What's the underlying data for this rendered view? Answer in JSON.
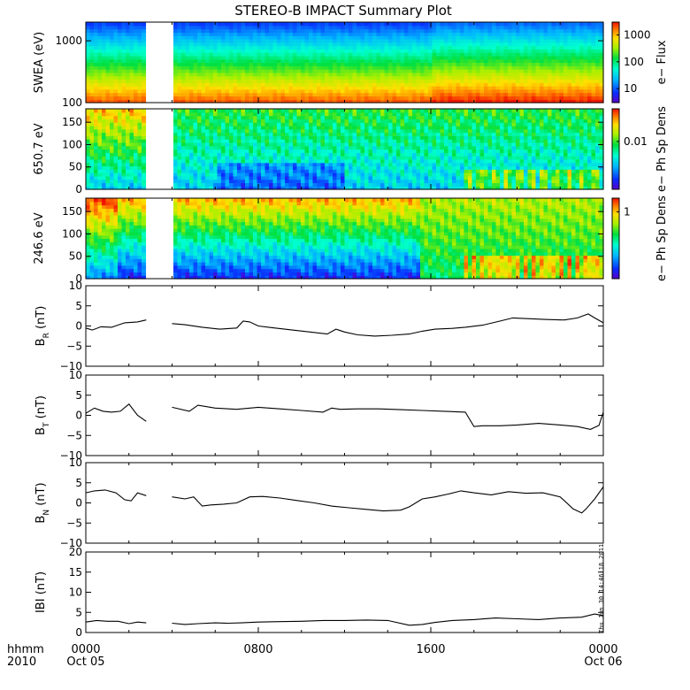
{
  "title": "STEREO-B IMPACT Summary Plot",
  "timestamp": "Thu Jun 30 14:46:18 2011",
  "time_axis": {
    "hhmm": "hhmm",
    "year": "2010",
    "ticks": [
      {
        "hour": 0,
        "time": "0000",
        "date": "Oct 05"
      },
      {
        "hour": 8,
        "time": "0800",
        "date": ""
      },
      {
        "hour": 16,
        "time": "1600",
        "date": ""
      },
      {
        "hour": 24,
        "time": "0000",
        "date": "Oct 06"
      }
    ]
  },
  "colors": {
    "trace": "#000000",
    "gap": "#ffffff"
  },
  "chart_data": [
    {
      "type": "heatmap",
      "ylabel": "SWEA (eV)",
      "yscale": "log",
      "ylim": [
        100,
        2000
      ],
      "yticks": [
        {
          "v": 100,
          "label": "100"
        },
        {
          "v": 1000,
          "label": "1000"
        }
      ],
      "colorbar": {
        "label": "e− Flux",
        "scale": "log",
        "range": [
          3,
          3000
        ],
        "ticks": [
          {
            "v": 10,
            "label": "10"
          },
          {
            "v": 100,
            "label": "100"
          },
          {
            "v": 1000,
            "label": "1000"
          }
        ]
      },
      "gap_hours": [
        2.8,
        4.0
      ]
    },
    {
      "type": "heatmap",
      "ylabel": "650.7 eV",
      "ylim": [
        0,
        180
      ],
      "yticks": [
        {
          "v": 0,
          "label": "0"
        },
        {
          "v": 50,
          "label": "50"
        },
        {
          "v": 100,
          "label": "100"
        },
        {
          "v": 150,
          "label": "150"
        }
      ],
      "colorbar": {
        "label": "e− Ph Sp Dens",
        "scale": "log",
        "range": [
          0.002,
          0.03
        ],
        "ticks": [
          {
            "v": 0.01,
            "label": "0.01"
          }
        ]
      },
      "gap_hours": [
        2.8,
        4.0
      ]
    },
    {
      "type": "heatmap",
      "ylabel": "246.6 eV",
      "ylim": [
        0,
        180
      ],
      "yticks": [
        {
          "v": 0,
          "label": "0"
        },
        {
          "v": 50,
          "label": "50"
        },
        {
          "v": 100,
          "label": "100"
        },
        {
          "v": 150,
          "label": "150"
        }
      ],
      "colorbar": {
        "label": "e− Ph Sp Dens",
        "scale": "log",
        "range": [
          0.1,
          1.6
        ],
        "ticks": [
          {
            "v": 1,
            "label": "1"
          }
        ]
      },
      "gap_hours": [
        2.8,
        4.0
      ]
    },
    {
      "type": "line",
      "ylabel": "B",
      "ysub": "R",
      "yunit": " (nT)",
      "ylim": [
        -10,
        10
      ],
      "yticks": [
        {
          "v": -10,
          "label": "−10"
        },
        {
          "v": -5,
          "label": "−5"
        },
        {
          "v": 0,
          "label": "0"
        },
        {
          "v": 5,
          "label": "5"
        },
        {
          "v": 10,
          "label": "10"
        }
      ],
      "x": [
        0,
        0.3,
        0.7,
        1.2,
        1.8,
        2.4,
        2.8,
        4.0,
        4.6,
        5.4,
        6.2,
        7.0,
        7.3,
        7.6,
        8.0,
        8.6,
        9.4,
        10.4,
        11.2,
        11.6,
        12.0,
        12.6,
        13.4,
        14.2,
        15.0,
        15.6,
        16.2,
        17.0,
        17.6,
        18.4,
        19.2,
        19.8,
        20.6,
        21.4,
        22.2,
        22.8,
        23.3,
        23.6,
        24.0
      ],
      "y": [
        -0.5,
        -1.0,
        -0.2,
        -0.3,
        0.8,
        1.0,
        1.5,
        0.6,
        0.3,
        -0.3,
        -0.8,
        -0.5,
        1.2,
        1.0,
        0.0,
        -0.4,
        -0.9,
        -1.5,
        -2.0,
        -0.8,
        -1.5,
        -2.2,
        -2.5,
        -2.3,
        -2.0,
        -1.3,
        -0.8,
        -0.6,
        -0.3,
        0.2,
        1.2,
        2.0,
        1.8,
        1.6,
        1.5,
        2.0,
        3.0,
        2.0,
        0.8
      ]
    },
    {
      "type": "line",
      "ylabel": "B",
      "ysub": "T",
      "yunit": " (nT)",
      "ylim": [
        -10,
        10
      ],
      "yticks": [
        {
          "v": -10,
          "label": "−10"
        },
        {
          "v": -5,
          "label": "−5"
        },
        {
          "v": 0,
          "label": "0"
        },
        {
          "v": 5,
          "label": "5"
        },
        {
          "v": 10,
          "label": "10"
        }
      ],
      "x": [
        0,
        0.4,
        0.8,
        1.2,
        1.6,
        2.0,
        2.4,
        2.8,
        4.0,
        4.8,
        5.2,
        6.0,
        7.0,
        8.0,
        9.0,
        10.0,
        11.0,
        11.4,
        11.8,
        12.6,
        13.6,
        14.6,
        15.6,
        16.6,
        17.6,
        18.0,
        18.4,
        19.2,
        20.0,
        21.0,
        22.0,
        22.8,
        23.4,
        23.8,
        24.0
      ],
      "y": [
        0.5,
        1.8,
        1.0,
        0.8,
        1.0,
        2.8,
        0.0,
        -1.5,
        2.0,
        1.0,
        2.5,
        1.8,
        1.5,
        2.0,
        1.6,
        1.2,
        0.8,
        1.8,
        1.5,
        1.6,
        1.6,
        1.4,
        1.2,
        1.0,
        0.8,
        -2.8,
        -2.6,
        -2.6,
        -2.4,
        -2.0,
        -2.4,
        -2.8,
        -3.5,
        -2.5,
        0.8
      ]
    },
    {
      "type": "line",
      "ylabel": "B",
      "ysub": "N",
      "yunit": " (nT)",
      "ylim": [
        -10,
        10
      ],
      "yticks": [
        {
          "v": -10,
          "label": "−10"
        },
        {
          "v": -5,
          "label": "−5"
        },
        {
          "v": 0,
          "label": "0"
        },
        {
          "v": 5,
          "label": "5"
        },
        {
          "v": 10,
          "label": "10"
        }
      ],
      "x": [
        0,
        0.4,
        0.9,
        1.4,
        1.8,
        2.1,
        2.4,
        2.8,
        4.0,
        4.6,
        5.0,
        5.4,
        5.8,
        6.4,
        7.0,
        7.6,
        8.2,
        9.0,
        9.8,
        10.6,
        11.4,
        12.2,
        13.0,
        13.8,
        14.6,
        15.0,
        15.6,
        16.2,
        16.8,
        17.4,
        18.0,
        18.8,
        19.6,
        20.4,
        21.2,
        22.0,
        22.6,
        23.0,
        23.2,
        23.6,
        24.0
      ],
      "y": [
        2.5,
        3.0,
        3.2,
        2.5,
        0.8,
        0.5,
        2.5,
        1.8,
        1.5,
        1.0,
        1.5,
        -0.8,
        -0.5,
        -0.3,
        0.0,
        1.5,
        1.6,
        1.2,
        0.6,
        0.0,
        -0.8,
        -1.2,
        -1.6,
        -2.0,
        -1.8,
        -1.0,
        1.0,
        1.5,
        2.2,
        3.0,
        2.5,
        2.0,
        2.8,
        2.4,
        2.5,
        1.5,
        -1.5,
        -2.5,
        -1.5,
        1.0,
        4.0
      ]
    },
    {
      "type": "line",
      "ylabel": "IBI",
      "yunit": " (nT)",
      "ylim": [
        0,
        20
      ],
      "yticks": [
        {
          "v": 0,
          "label": "0"
        },
        {
          "v": 5,
          "label": "5"
        },
        {
          "v": 10,
          "label": "10"
        },
        {
          "v": 15,
          "label": "15"
        },
        {
          "v": 20,
          "label": "20"
        }
      ],
      "x": [
        0,
        0.5,
        1.0,
        1.5,
        2.0,
        2.4,
        2.8,
        4.0,
        4.6,
        5.2,
        6.0,
        6.6,
        7.2,
        8.0,
        9.0,
        10.0,
        11.0,
        12.0,
        13.0,
        14.0,
        15.0,
        15.6,
        16.2,
        17.0,
        18.0,
        19.0,
        20.0,
        21.0,
        22.0,
        23.0,
        23.6,
        24.0
      ],
      "y": [
        2.6,
        3.0,
        2.8,
        2.8,
        2.2,
        2.6,
        2.4,
        2.3,
        2.0,
        2.2,
        2.4,
        2.3,
        2.4,
        2.6,
        2.7,
        2.8,
        3.0,
        3.0,
        3.1,
        3.0,
        1.8,
        2.0,
        2.5,
        3.0,
        3.2,
        3.6,
        3.4,
        3.2,
        3.6,
        3.8,
        4.6,
        4.2
      ]
    }
  ]
}
